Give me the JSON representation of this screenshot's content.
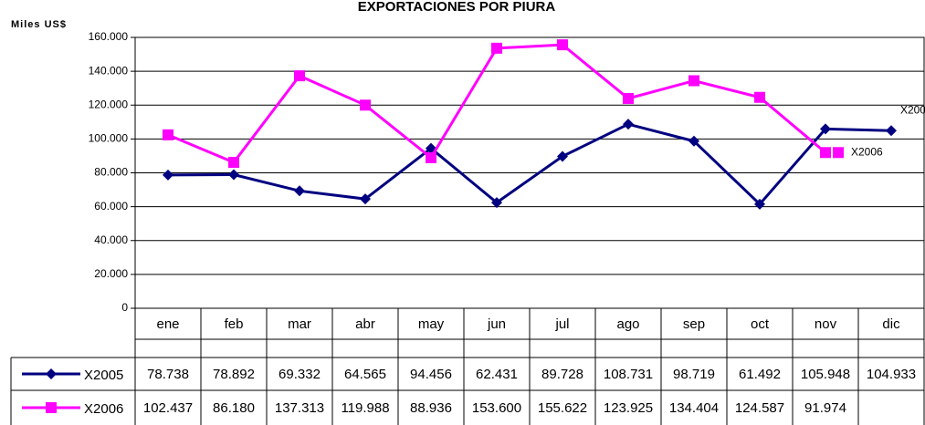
{
  "chart_data": {
    "type": "line",
    "title": "EXPORTACIONES POR PIURA",
    "y_label": "Miles US$",
    "categories": [
      "ene",
      "feb",
      "mar",
      "abr",
      "may",
      "jun",
      "jul",
      "ago",
      "sep",
      "oct",
      "nov",
      "dic"
    ],
    "series": [
      {
        "name": "X2005",
        "color": "#000080",
        "marker": "diamond",
        "values": [
          78738,
          78892,
          69332,
          64565,
          94456,
          62431,
          89728,
          108731,
          98719,
          61492,
          105948,
          104933
        ],
        "value_labels": [
          "78.738",
          "78.892",
          "69.332",
          "64.565",
          "94.456",
          "62.431",
          "89.728",
          "108.731",
          "98.719",
          "61.492",
          "105.948",
          "104.933"
        ]
      },
      {
        "name": "X2006",
        "color": "#ff00ff",
        "marker": "square",
        "values": [
          102437,
          86180,
          137313,
          119988,
          88936,
          153600,
          155622,
          123925,
          134404,
          124587,
          91974,
          null
        ],
        "value_labels": [
          "102.437",
          "86.180",
          "137.313",
          "119.988",
          "88.936",
          "153.600",
          "155.622",
          "123.925",
          "134.404",
          "124.587",
          "91.974",
          null
        ]
      }
    ],
    "ylim": [
      0,
      160000
    ],
    "yticks": [
      0,
      {
        "value": 20000,
        "label": "20.000"
      },
      {
        "value": 40000,
        "label": "40.000"
      },
      {
        "value": 60000,
        "label": "60.000"
      },
      {
        "value": 80000,
        "label": "80.000"
      },
      {
        "value": 100000,
        "label": "100.000"
      },
      {
        "value": 120000,
        "label": "120.000"
      },
      {
        "value": 140000,
        "label": "140.000"
      },
      {
        "value": 160000,
        "label": "160.000"
      }
    ],
    "grid": true
  }
}
